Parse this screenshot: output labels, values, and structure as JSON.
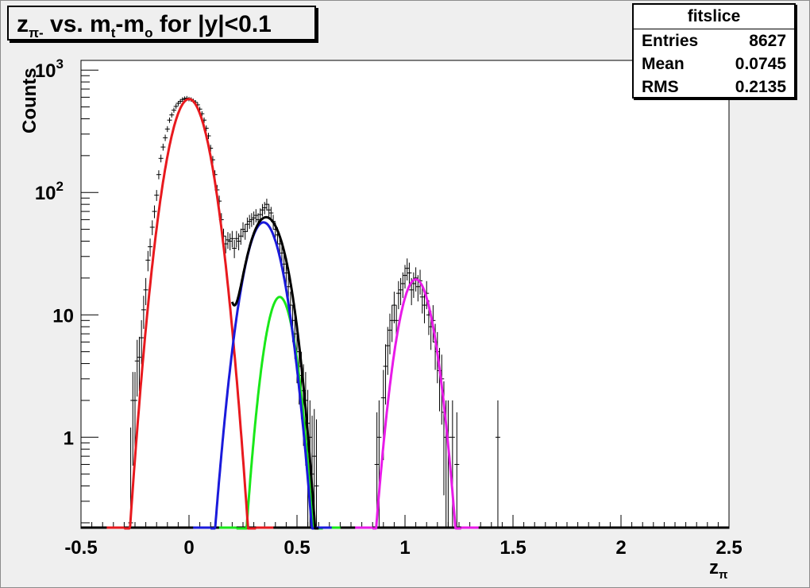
{
  "title": {
    "z": "z",
    "z_sub": "π-",
    "mid": " vs. m",
    "mt_sub": "t",
    "dash": "-m",
    "mo_sub": "o",
    "rest": " for |y|<0.1"
  },
  "stats": {
    "name": "fitslice",
    "rows": [
      {
        "label": "Entries",
        "value": "8627"
      },
      {
        "label": "Mean",
        "value": "0.0745"
      },
      {
        "label": "RMS",
        "value": "0.2135"
      }
    ]
  },
  "chart_data": {
    "type": "line",
    "xlabel": "z",
    "xlabel_sub": "π",
    "ylabel": "Counts",
    "xlim": [
      -0.5,
      2.5
    ],
    "ylim": [
      0.18,
      1200
    ],
    "yscale": "log",
    "x_ticks": [
      {
        "value": -0.5,
        "label": "-0.5"
      },
      {
        "value": 0,
        "label": "0"
      },
      {
        "value": 0.5,
        "label": "0.5"
      },
      {
        "value": 1,
        "label": "1"
      },
      {
        "value": 1.5,
        "label": "1.5"
      },
      {
        "value": 2,
        "label": "2"
      },
      {
        "value": 2.5,
        "label": "2.5"
      }
    ],
    "y_ticks": [
      {
        "value": 1,
        "label": "1"
      },
      {
        "value": 10,
        "label": "10"
      },
      {
        "value": 100,
        "label": "10",
        "sup": "2"
      },
      {
        "value": 1000,
        "label": "10",
        "sup": "3"
      }
    ],
    "curve_colors": {
      "pion": "#e8191e",
      "kaon": "#1a1adb",
      "proton_light": "#19e819",
      "deuteron": "#e81ae8",
      "total": "#000000"
    },
    "series": [
      {
        "key": "pion",
        "color": "#e8191e",
        "type": "gaussian",
        "amplitude": 580,
        "mean": 0.0,
        "sigma": 0.068,
        "range": [
          -0.3,
          0.31
        ]
      },
      {
        "key": "kaon",
        "color": "#1a1adb",
        "type": "gaussian",
        "amplitude": 57,
        "mean": 0.345,
        "sigma": 0.066,
        "range": [
          0.1,
          0.58
        ]
      },
      {
        "key": "proton_light",
        "color": "#19e819",
        "type": "gaussian",
        "amplitude": 14,
        "mean": 0.42,
        "sigma": 0.052,
        "range": [
          0.22,
          0.62
        ]
      },
      {
        "key": "deuteron",
        "color": "#e81ae8",
        "type": "gaussian",
        "amplitude": 19.5,
        "mean": 1.05,
        "sigma": 0.06,
        "range": [
          0.85,
          1.26
        ]
      },
      {
        "key": "total",
        "color": "#000000",
        "type": "sum",
        "components": [
          "pion",
          "kaon",
          "proton_light"
        ],
        "range": [
          0.2,
          0.6
        ]
      }
    ],
    "data_points": [
      [
        -0.27,
        0.2
      ],
      [
        -0.26,
        2.0
      ],
      [
        -0.25,
        2.0
      ],
      [
        -0.24,
        4.2
      ],
      [
        -0.23,
        4.5
      ],
      [
        -0.22,
        6.5
      ],
      [
        -0.21,
        11
      ],
      [
        -0.2,
        16
      ],
      [
        -0.19,
        28
      ],
      [
        -0.18,
        36
      ],
      [
        -0.17,
        52
      ],
      [
        -0.16,
        70
      ],
      [
        -0.15,
        95
      ],
      [
        -0.14,
        140
      ],
      [
        -0.13,
        190
      ],
      [
        -0.12,
        235
      ],
      [
        -0.11,
        280
      ],
      [
        -0.1,
        330
      ],
      [
        -0.09,
        390
      ],
      [
        -0.08,
        430
      ],
      [
        -0.07,
        470
      ],
      [
        -0.06,
        505
      ],
      [
        -0.05,
        535
      ],
      [
        -0.04,
        555
      ],
      [
        -0.03,
        575
      ],
      [
        -0.02,
        585
      ],
      [
        -0.01,
        590
      ],
      [
        0.0,
        580
      ],
      [
        0.01,
        575
      ],
      [
        0.02,
        560
      ],
      [
        0.03,
        545
      ],
      [
        0.04,
        520
      ],
      [
        0.05,
        480
      ],
      [
        0.06,
        440
      ],
      [
        0.07,
        390
      ],
      [
        0.08,
        335
      ],
      [
        0.09,
        290
      ],
      [
        0.1,
        230
      ],
      [
        0.11,
        185
      ],
      [
        0.12,
        140
      ],
      [
        0.13,
        105
      ],
      [
        0.14,
        85
      ],
      [
        0.15,
        60
      ],
      [
        0.16,
        44
      ],
      [
        0.17,
        38
      ],
      [
        0.18,
        41
      ],
      [
        0.19,
        40
      ],
      [
        0.2,
        42
      ],
      [
        0.21,
        35
      ],
      [
        0.22,
        42
      ],
      [
        0.23,
        40
      ],
      [
        0.24,
        44
      ],
      [
        0.25,
        50
      ],
      [
        0.26,
        48
      ],
      [
        0.27,
        55
      ],
      [
        0.28,
        58
      ],
      [
        0.29,
        60
      ],
      [
        0.3,
        62
      ],
      [
        0.31,
        65
      ],
      [
        0.32,
        60
      ],
      [
        0.33,
        66
      ],
      [
        0.34,
        72
      ],
      [
        0.35,
        75
      ],
      [
        0.36,
        80
      ],
      [
        0.37,
        72
      ],
      [
        0.38,
        68
      ],
      [
        0.39,
        58
      ],
      [
        0.4,
        50
      ],
      [
        0.41,
        45
      ],
      [
        0.42,
        38
      ],
      [
        0.43,
        32
      ],
      [
        0.44,
        26
      ],
      [
        0.45,
        22
      ],
      [
        0.46,
        17
      ],
      [
        0.47,
        12
      ],
      [
        0.48,
        9
      ],
      [
        0.49,
        7
      ],
      [
        0.5,
        5
      ],
      [
        0.51,
        3.8
      ],
      [
        0.52,
        3.2
      ],
      [
        0.53,
        2.4
      ],
      [
        0.54,
        2.0
      ],
      [
        0.55,
        1.3
      ],
      [
        0.56,
        1.0
      ],
      [
        0.57,
        0.5
      ],
      [
        0.58,
        0.7
      ],
      [
        0.59,
        0.4
      ],
      [
        0.87,
        0.6
      ],
      [
        0.88,
        1.0
      ],
      [
        0.9,
        2.1
      ],
      [
        0.91,
        3.8
      ],
      [
        0.92,
        5.6
      ],
      [
        0.93,
        7.5
      ],
      [
        0.94,
        9
      ],
      [
        0.95,
        12
      ],
      [
        0.96,
        9
      ],
      [
        0.97,
        15
      ],
      [
        0.98,
        16
      ],
      [
        0.99,
        18
      ],
      [
        1.0,
        21
      ],
      [
        1.01,
        24
      ],
      [
        1.02,
        22
      ],
      [
        1.03,
        16
      ],
      [
        1.04,
        18
      ],
      [
        1.05,
        20
      ],
      [
        1.06,
        17
      ],
      [
        1.07,
        19
      ],
      [
        1.08,
        14
      ],
      [
        1.09,
        12
      ],
      [
        1.1,
        15
      ],
      [
        1.11,
        10
      ],
      [
        1.12,
        8
      ],
      [
        1.13,
        9
      ],
      [
        1.14,
        6
      ],
      [
        1.15,
        5
      ],
      [
        1.16,
        3.5
      ],
      [
        1.17,
        3
      ],
      [
        1.18,
        1.6
      ],
      [
        1.19,
        1
      ],
      [
        1.2,
        1
      ],
      [
        1.22,
        1
      ],
      [
        1.24,
        0.6
      ],
      [
        1.43,
        1
      ]
    ]
  }
}
